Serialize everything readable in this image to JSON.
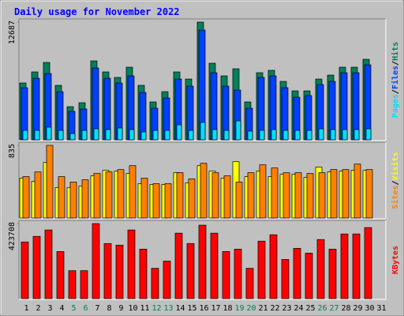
{
  "title": "Daily usage for November 2022",
  "legend_separator": "/",
  "chart_data": [
    {
      "type": "bar",
      "series": [
        {
          "name": "Hits",
          "color": "#00805c",
          "values": [
            6127,
            7319,
            8340,
            5872,
            3574,
            4000,
            8510,
            7319,
            6723,
            7829,
            5872,
            4085,
            5191,
            7319,
            6553,
            12687,
            8255,
            6893,
            7659,
            4085,
            7234,
            7489,
            6297,
            5276,
            5276,
            6553,
            6978,
            7829,
            7829,
            8680,
            null
          ]
        },
        {
          "name": "Files",
          "color": "#0040ff",
          "values": [
            5617,
            6638,
            7148,
            5191,
            3064,
            3319,
            7744,
            6638,
            6127,
            6893,
            5106,
            3404,
            4510,
            6553,
            5787,
            11829,
            7234,
            5787,
            5361,
            3404,
            6723,
            6893,
            5617,
            4595,
            4766,
            5957,
            6297,
            7234,
            7234,
            8085,
            null
          ]
        },
        {
          "name": "Pages",
          "color": "#00e0ff",
          "values": [
            1021,
            1021,
            1362,
            1021,
            681,
            1021,
            1191,
            1106,
            1277,
            1106,
            851,
            1021,
            1021,
            1617,
            1021,
            1872,
            1106,
            1021,
            2042,
            936,
            1021,
            1106,
            1021,
            1021,
            1021,
            1191,
            1106,
            1106,
            1106,
            1191,
            null
          ]
        }
      ],
      "ylim": [
        0,
        12687
      ],
      "yticks": [
        12687
      ],
      "grid": false
    },
    {
      "type": "bar",
      "series": [
        {
          "name": "Visits",
          "color": "#ffff00",
          "values": [
            458,
            422,
            638,
            350,
            350,
            368,
            485,
            548,
            539,
            512,
            395,
            386,
            386,
            521,
            404,
            602,
            539,
            458,
            647,
            476,
            539,
            476,
            503,
            503,
            467,
            584,
            530,
            539,
            548,
            548,
            null
          ]
        },
        {
          "name": "Sites",
          "color": "#ff8000",
          "values": [
            476,
            530,
            835,
            476,
            413,
            440,
            512,
            530,
            557,
            602,
            458,
            395,
            395,
            521,
            449,
            629,
            521,
            485,
            413,
            521,
            611,
            575,
            521,
            521,
            512,
            521,
            557,
            557,
            620,
            557,
            null
          ]
        }
      ],
      "ylim": [
        0,
        835
      ],
      "yticks": [
        835
      ],
      "grid": false
    },
    {
      "type": "bar",
      "categories": [
        "1",
        "2",
        "3",
        "4",
        "5",
        "6",
        "7",
        "8",
        "9",
        "10",
        "11",
        "12",
        "13",
        "14",
        "15",
        "16",
        "17",
        "18",
        "19",
        "20",
        "21",
        "22",
        "23",
        "24",
        "25",
        "26",
        "27",
        "28",
        "29",
        "30",
        "31"
      ],
      "category_colors": [
        "#000000",
        "#000000",
        "#000000",
        "#000000",
        "#00805c",
        "#00805c",
        "#000000",
        "#000000",
        "#000000",
        "#000000",
        "#000000",
        "#00805c",
        "#00805c",
        "#000000",
        "#000000",
        "#000000",
        "#000000",
        "#000000",
        "#00805c",
        "#00805c",
        "#000000",
        "#000000",
        "#000000",
        "#000000",
        "#000000",
        "#00805c",
        "#00805c",
        "#000000",
        "#000000",
        "#000000",
        "#000000"
      ],
      "series": [
        {
          "name": "KBytes",
          "color": "#ff0000",
          "values": [
            320000,
            351546,
            387602,
            265913,
            157745,
            157745,
            423708,
            310983,
            301969,
            387602,
            279434,
            171266,
            211829,
            369574,
            310983,
            414644,
            369574,
            265913,
            279434,
            171266,
            324504,
            360560,
            220843,
            283941,
            256899,
            333518,
            279434,
            365067,
            365067,
            401123,
            null
          ]
        }
      ],
      "ylim": [
        0,
        423708
      ],
      "yticks": [
        423708
      ],
      "grid": false
    }
  ]
}
